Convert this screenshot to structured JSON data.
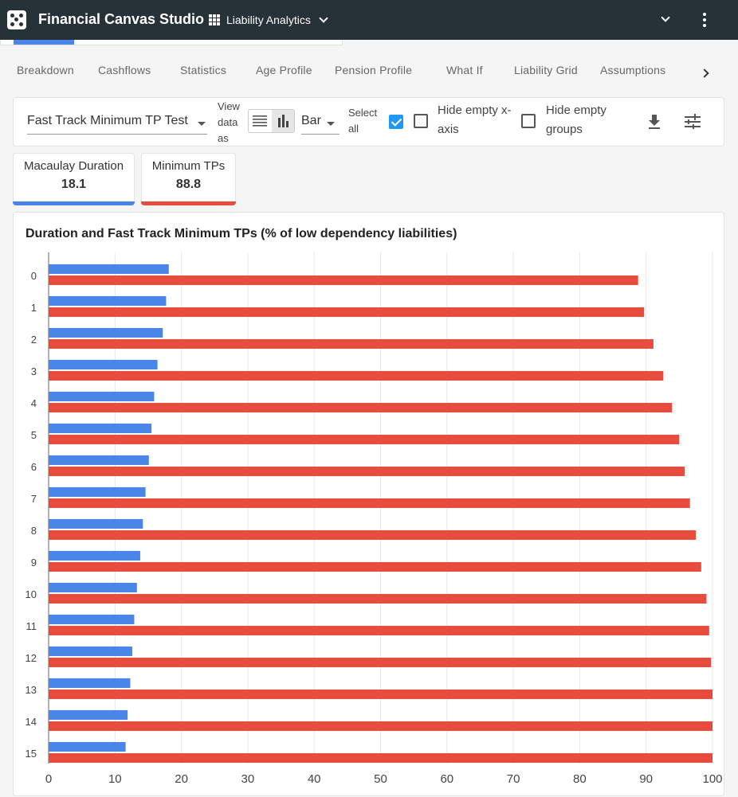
{
  "app": {
    "title": "Financial Canvas Studio",
    "module": "Liability Analytics"
  },
  "tabs": [
    "Breakdown",
    "Cashflows",
    "Statistics",
    "Age Profile",
    "Pension Profile",
    "What If",
    "Liability Grid",
    "Assumptions"
  ],
  "toolbar": {
    "metric": "Fast Track Minimum TP Test",
    "view_label": "View data as",
    "chart_type": "Bar",
    "select_all_label": "Select all",
    "select_all_checked": true,
    "hide_empty_xaxis_label": "Hide empty x-axis",
    "hide_empty_xaxis_checked": false,
    "hide_empty_groups_label": "Hide empty groups",
    "hide_empty_groups_checked": false
  },
  "metrics": [
    {
      "label": "Macaulay Duration",
      "value": "18.1",
      "color": "#4a86e8"
    },
    {
      "label": "Minimum TPs",
      "value": "88.8",
      "color": "#e74c3c"
    }
  ],
  "chart_data": {
    "type": "bar",
    "orientation": "horizontal",
    "title": "Duration and Fast Track Minimum TPs (% of low dependency liabilities)",
    "categories": [
      "0",
      "1",
      "2",
      "3",
      "4",
      "5",
      "6",
      "7",
      "8",
      "9",
      "10",
      "11",
      "12",
      "13",
      "14",
      "15"
    ],
    "series": [
      {
        "color": "#4a86e8",
        "values": [
          18.1,
          17.7,
          17.2,
          16.4,
          15.9,
          15.5,
          15.1,
          14.6,
          14.2,
          13.8,
          13.3,
          12.9,
          12.6,
          12.3,
          11.9,
          11.6
        ]
      },
      {
        "color": "#e74c3c",
        "values": [
          88.8,
          89.7,
          91.1,
          92.6,
          93.9,
          95.0,
          95.8,
          96.6,
          97.5,
          98.3,
          99.1,
          99.5,
          99.8,
          100,
          100,
          100
        ]
      }
    ],
    "xlim": [
      0,
      100
    ],
    "xticks": [
      0,
      10,
      20,
      30,
      40,
      50,
      60,
      70,
      80,
      90,
      100
    ],
    "grid": true
  }
}
